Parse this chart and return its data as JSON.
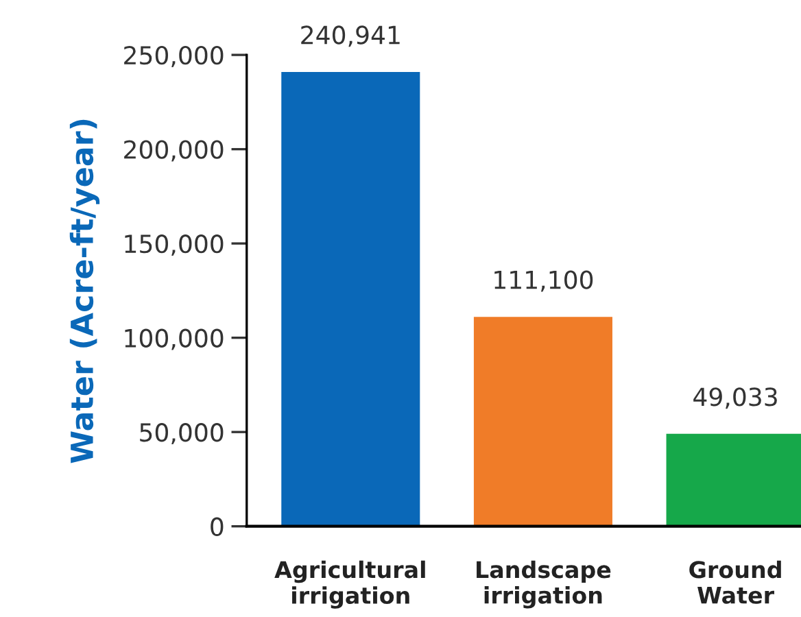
{
  "chart_data": {
    "type": "bar",
    "ylabel": "Water (Acre-ft/year)",
    "categories": [
      "Agricultural\nirrigation",
      "Landscape\nirrigation",
      "Ground\nWater"
    ],
    "values": [
      240941,
      111100,
      49033
    ],
    "colors": [
      "#0a68b8",
      "#f07c28",
      "#16a84a"
    ],
    "value_labels": [
      "240,941",
      "111,100",
      "49,033"
    ],
    "ylim": [
      0,
      250000
    ],
    "yticks": [
      {
        "value": 0,
        "label": "0"
      },
      {
        "value": 50000,
        "label": "50,000"
      },
      {
        "value": 100000,
        "label": "100,000"
      },
      {
        "value": 150000,
        "label": "150,000"
      },
      {
        "value": 200000,
        "label": "200,000"
      },
      {
        "value": 250000,
        "label": "250,000"
      }
    ],
    "grid": false,
    "legend": false
  }
}
